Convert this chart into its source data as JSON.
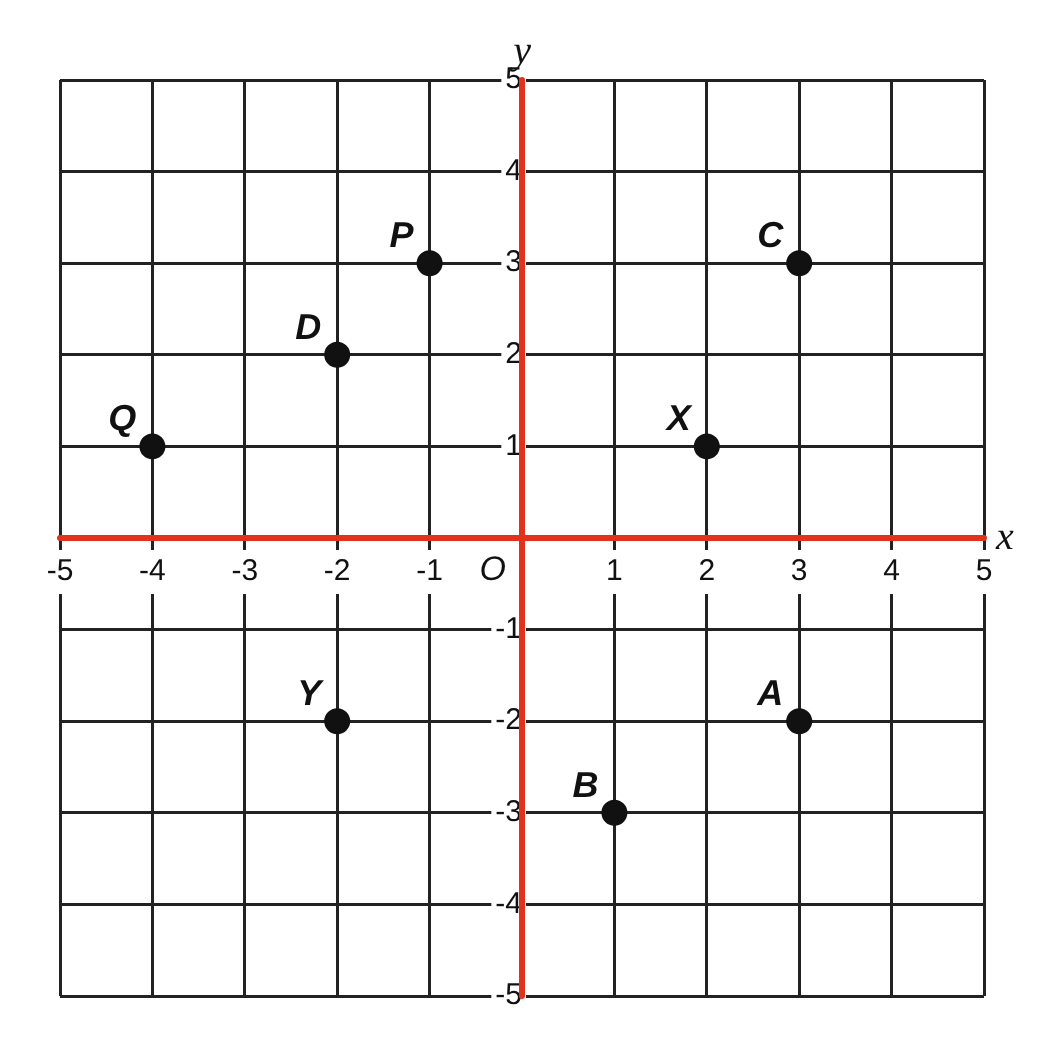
{
  "chart_data": {
    "type": "scatter",
    "xlabel": "x",
    "ylabel": "y",
    "x": [
      -4,
      -2,
      -1,
      3,
      2,
      -2,
      1,
      3
    ],
    "series": [
      {
        "color": "#111111",
        "values": [
          1,
          2,
          3,
          3,
          1,
          -2,
          -3,
          -2
        ]
      }
    ],
    "annotations": [
      {
        "text": "Q",
        "x": -4,
        "y": 1
      },
      {
        "text": "D",
        "x": -2,
        "y": 2
      },
      {
        "text": "P",
        "x": -1,
        "y": 3
      },
      {
        "text": "C",
        "x": 3,
        "y": 3
      },
      {
        "text": "X",
        "x": 2,
        "y": 1
      },
      {
        "text": "Y",
        "x": -2,
        "y": -2
      },
      {
        "text": "B",
        "x": 1,
        "y": -3
      },
      {
        "text": "A",
        "x": 3,
        "y": -2
      },
      "O"
    ],
    "xlim": [
      -5,
      5
    ],
    "ylim": [
      -5,
      5
    ],
    "xticks": [
      -5,
      -4,
      -3,
      -2,
      -1,
      {
        "value": 0,
        "label": null
      },
      1,
      2,
      3,
      4,
      5
    ],
    "yticks": [
      -5,
      -4,
      -3,
      -2,
      -1,
      {
        "value": 0,
        "label": null
      },
      1,
      2,
      3,
      4,
      5
    ],
    "grid": true,
    "marker": "circle",
    "legend": false
  }
}
